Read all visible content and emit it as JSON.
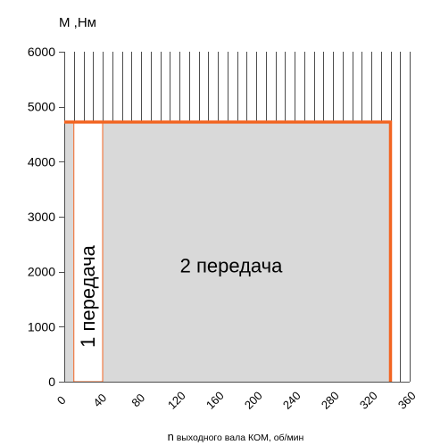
{
  "chart_data": {
    "type": "area",
    "ylabel": "M ,Нм",
    "xlabel_lead": "n",
    "xlabel_rest": "выходного вала КОМ, об/мин",
    "xlim": [
      0,
      360
    ],
    "ylim": [
      0,
      6000
    ],
    "x_ticks": [
      0,
      40,
      80,
      120,
      160,
      200,
      240,
      280,
      320,
      360
    ],
    "y_ticks": [
      0,
      1000,
      2000,
      3000,
      4000,
      5000,
      6000
    ],
    "x_minor_grid_step": 10,
    "grid": "vertical",
    "regions": [
      {
        "label": "1 передача",
        "x_start": 10,
        "x_end": 40,
        "fill": "#ffffff",
        "text_orientation": "vertical"
      },
      {
        "label": "2 передача",
        "x_start": 0,
        "x_end": 340,
        "fill": "#d9d9d9",
        "text_orientation": "horizontal"
      }
    ],
    "envelope": {
      "x": [
        0,
        340,
        340
      ],
      "y": [
        4720,
        4720,
        0
      ],
      "color": "#f26522"
    }
  }
}
